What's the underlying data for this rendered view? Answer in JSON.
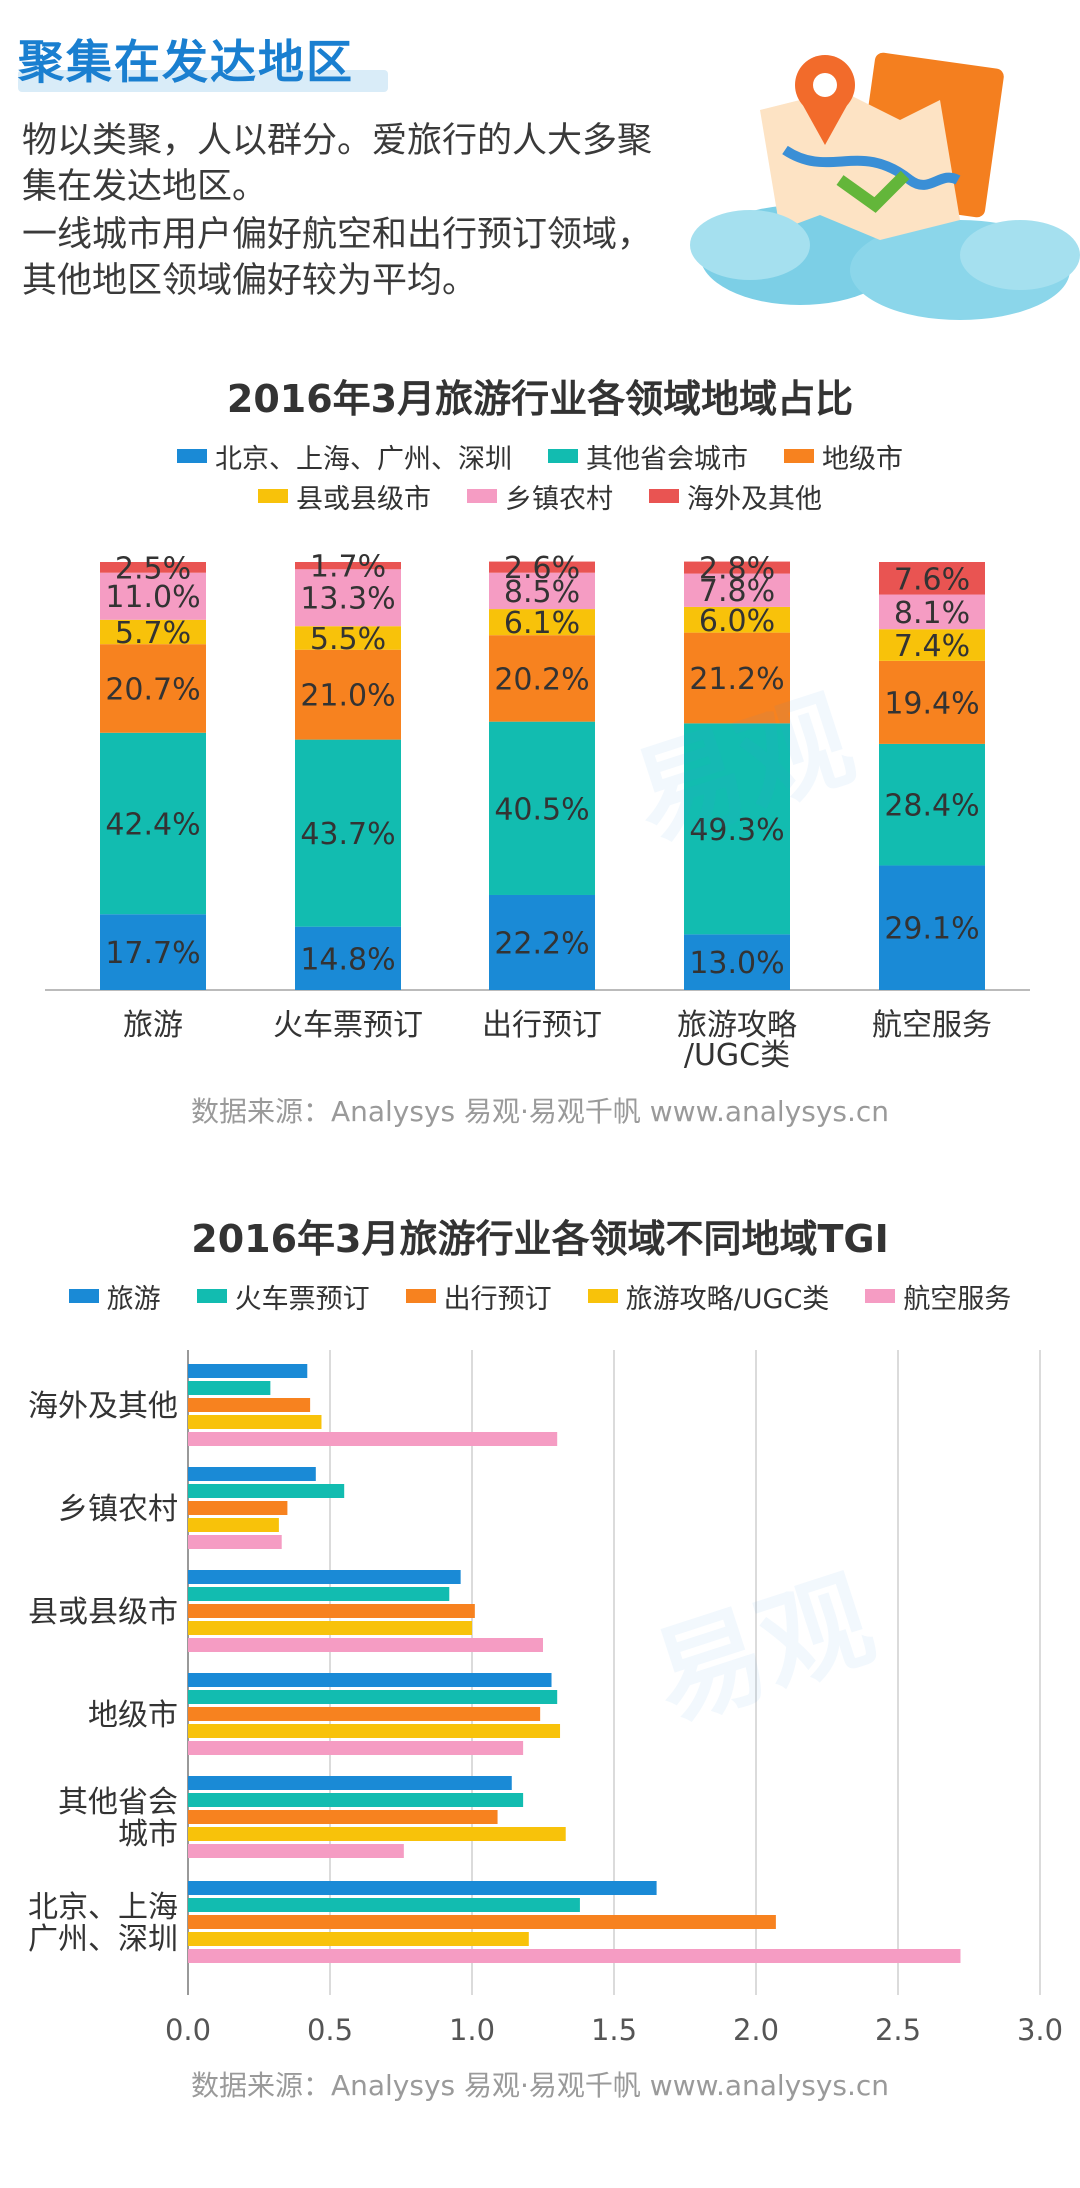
{
  "header": {
    "title": "聚集在发达地区",
    "intro_line1": "物以类聚，人以群分。爱旅行的人大多聚集在发达地区。",
    "intro_line2": "一线城市用户偏好航空和出行预订领域，其他地区领域偏好较为平均。"
  },
  "watermark": {
    "text": "易观"
  },
  "colors": {
    "region": [
      "#1a8ad6",
      "#12bcb0",
      "#f7821f",
      "#f8c20a",
      "#f59cc3",
      "#e95452"
    ],
    "domain": [
      "#1a8ad6",
      "#12bcb0",
      "#f7821f",
      "#f8c20a",
      "#f59cc3"
    ]
  },
  "chart_data": [
    {
      "type": "bar",
      "stacked": true,
      "title": "2016年3月旅游行业各领域地域占比",
      "categories": [
        "旅游",
        "火车票预订",
        "出行预订",
        "旅游攻略\n/UGC类",
        "航空服务"
      ],
      "series": [
        {
          "name": "北京、上海、广州、深圳",
          "values": [
            17.7,
            14.8,
            22.2,
            13.0,
            29.1
          ]
        },
        {
          "name": "其他省会城市",
          "values": [
            42.4,
            43.7,
            40.5,
            49.3,
            28.4
          ]
        },
        {
          "name": "地级市",
          "values": [
            20.7,
            21.0,
            20.2,
            21.2,
            19.4
          ]
        },
        {
          "name": "县或县级市",
          "values": [
            5.7,
            5.5,
            6.1,
            6.0,
            7.4
          ]
        },
        {
          "name": "乡镇农村",
          "values": [
            11.0,
            13.3,
            8.5,
            7.8,
            8.1
          ]
        },
        {
          "name": "海外及其他",
          "values": [
            2.5,
            1.7,
            2.6,
            2.8,
            7.6
          ]
        }
      ],
      "unit": "%",
      "ylim": [
        0,
        100
      ],
      "source": "数据来源：Analysys 易观·易观千帆 www.analysys.cn"
    },
    {
      "type": "bar",
      "orientation": "horizontal",
      "title": "2016年3月旅游行业各领域不同地域TGI",
      "categories": [
        "海外及其他",
        "乡镇农村",
        "县或县级市",
        "地级市",
        "其他省会\n城市",
        "北京、上海\n广州、深圳"
      ],
      "series": [
        {
          "name": "旅游",
          "values": [
            0.42,
            0.45,
            0.96,
            1.28,
            1.14,
            1.65
          ]
        },
        {
          "name": "火车票预订",
          "values": [
            0.29,
            0.55,
            0.92,
            1.3,
            1.18,
            1.38
          ]
        },
        {
          "name": "出行预订",
          "values": [
            0.43,
            0.35,
            1.01,
            1.24,
            1.09,
            2.07
          ]
        },
        {
          "name": "旅游攻略/UGC类",
          "values": [
            0.47,
            0.32,
            1.0,
            1.31,
            1.33,
            1.2
          ]
        },
        {
          "name": "航空服务",
          "values": [
            1.3,
            0.33,
            1.25,
            1.18,
            0.76,
            2.72
          ]
        }
      ],
      "xlim": [
        0,
        3.0
      ],
      "xticks": [
        "0.0",
        "0.5",
        "1.0",
        "1.5",
        "2.0",
        "2.5",
        "3.0"
      ],
      "grid": true,
      "source": "数据来源：Analysys 易观·易观千帆 www.analysys.cn"
    }
  ]
}
